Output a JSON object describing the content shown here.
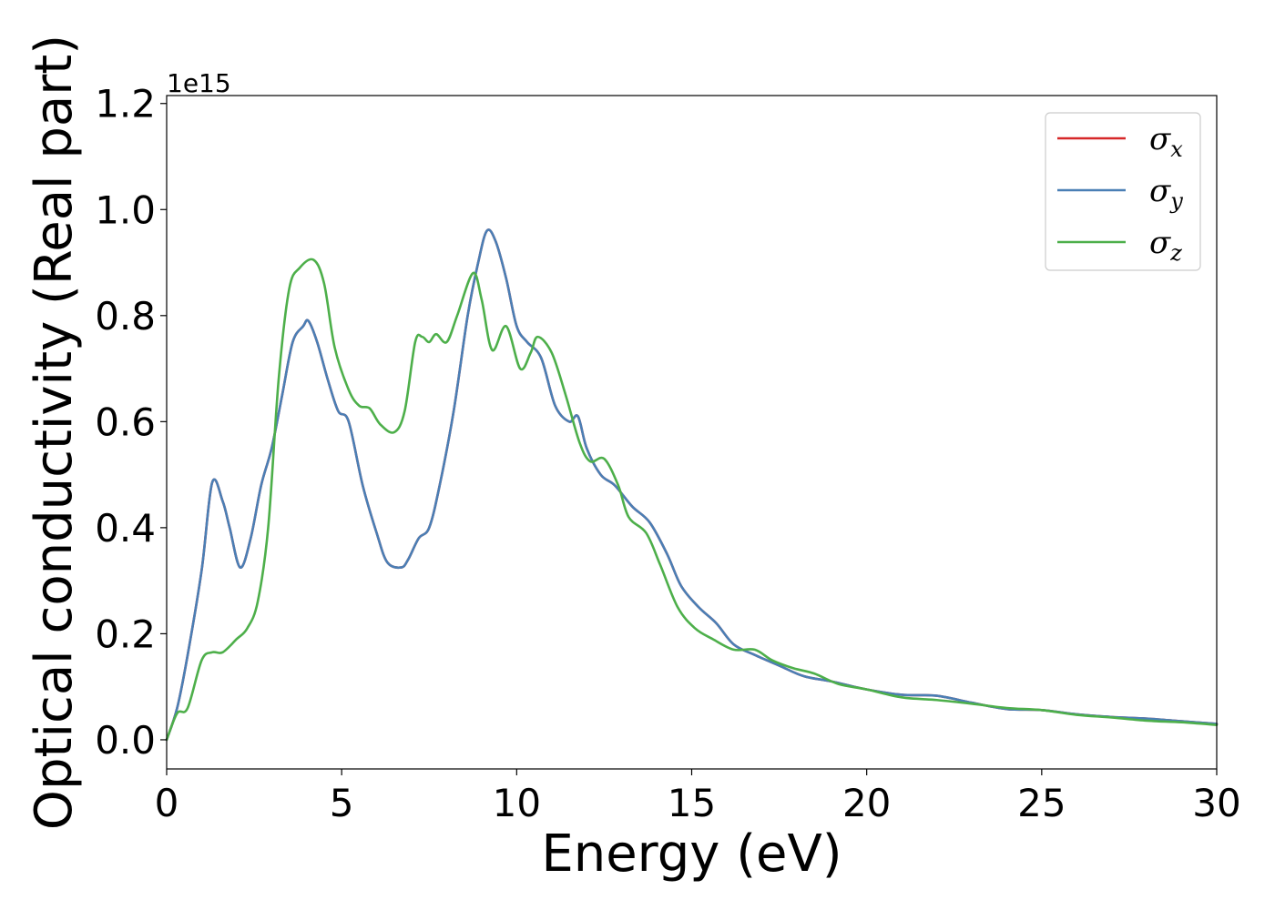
{
  "chart_data": {
    "type": "line",
    "xlabel": "Energy (eV)",
    "ylabel": "Optical conductivity (Real part)",
    "y_offset_label": "1e15",
    "y_scale": 1000000000000000.0,
    "xlim": [
      0,
      30
    ],
    "ylim": [
      -0.055,
      1.215
    ],
    "xticks": [
      0,
      5,
      10,
      15,
      20,
      25,
      30
    ],
    "xtick_labels": [
      "0",
      "5",
      "10",
      "15",
      "20",
      "25",
      "30"
    ],
    "yticks": [
      0.0,
      0.2,
      0.4,
      0.6,
      0.8,
      1.0,
      1.2
    ],
    "ytick_labels": [
      "0.0",
      "0.2",
      "0.4",
      "0.6",
      "0.8",
      "1.0",
      "1.2"
    ],
    "grid": false,
    "legend_position": "top-right",
    "series": [
      {
        "name": "σx",
        "symbol": "σ",
        "subscript": "x",
        "color": "#d62728",
        "points": [
          [
            0,
            0
          ],
          [
            0.3,
            0.06
          ],
          [
            0.6,
            0.16
          ],
          [
            1.0,
            0.32
          ],
          [
            1.3,
            0.485
          ],
          [
            1.6,
            0.45
          ],
          [
            1.8,
            0.4
          ],
          [
            2.1,
            0.325
          ],
          [
            2.4,
            0.38
          ],
          [
            2.7,
            0.48
          ],
          [
            3.0,
            0.55
          ],
          [
            3.3,
            0.65
          ],
          [
            3.6,
            0.75
          ],
          [
            3.9,
            0.78
          ],
          [
            4.05,
            0.79
          ],
          [
            4.3,
            0.75
          ],
          [
            4.6,
            0.68
          ],
          [
            4.9,
            0.62
          ],
          [
            5.2,
            0.6
          ],
          [
            5.6,
            0.48
          ],
          [
            6.0,
            0.39
          ],
          [
            6.3,
            0.335
          ],
          [
            6.7,
            0.325
          ],
          [
            6.9,
            0.34
          ],
          [
            7.2,
            0.38
          ],
          [
            7.5,
            0.4
          ],
          [
            7.8,
            0.48
          ],
          [
            8.2,
            0.62
          ],
          [
            8.6,
            0.8
          ],
          [
            8.9,
            0.9
          ],
          [
            9.15,
            0.96
          ],
          [
            9.4,
            0.94
          ],
          [
            9.7,
            0.87
          ],
          [
            10.0,
            0.78
          ],
          [
            10.3,
            0.75
          ],
          [
            10.7,
            0.72
          ],
          [
            11.1,
            0.63
          ],
          [
            11.5,
            0.6
          ],
          [
            11.75,
            0.61
          ],
          [
            12.0,
            0.55
          ],
          [
            12.4,
            0.5
          ],
          [
            12.8,
            0.48
          ],
          [
            13.3,
            0.44
          ],
          [
            13.8,
            0.41
          ],
          [
            14.3,
            0.35
          ],
          [
            14.7,
            0.29
          ],
          [
            15.2,
            0.25
          ],
          [
            15.7,
            0.22
          ],
          [
            16.2,
            0.18
          ],
          [
            16.8,
            0.16
          ],
          [
            17.5,
            0.14
          ],
          [
            18.2,
            0.12
          ],
          [
            19.0,
            0.11
          ],
          [
            20.0,
            0.095
          ],
          [
            21.0,
            0.085
          ],
          [
            22.0,
            0.083
          ],
          [
            23.0,
            0.07
          ],
          [
            24.0,
            0.058
          ],
          [
            25.0,
            0.056
          ],
          [
            26.0,
            0.048
          ],
          [
            27.0,
            0.043
          ],
          [
            28.0,
            0.04
          ],
          [
            29.0,
            0.035
          ],
          [
            30.0,
            0.03
          ]
        ]
      },
      {
        "name": "σy",
        "symbol": "σ",
        "subscript": "y",
        "color": "#4a7fb5",
        "points": [
          [
            0,
            0
          ],
          [
            0.3,
            0.06
          ],
          [
            0.6,
            0.16
          ],
          [
            1.0,
            0.32
          ],
          [
            1.3,
            0.485
          ],
          [
            1.6,
            0.45
          ],
          [
            1.8,
            0.4
          ],
          [
            2.1,
            0.325
          ],
          [
            2.4,
            0.38
          ],
          [
            2.7,
            0.48
          ],
          [
            3.0,
            0.55
          ],
          [
            3.3,
            0.65
          ],
          [
            3.6,
            0.75
          ],
          [
            3.9,
            0.78
          ],
          [
            4.05,
            0.79
          ],
          [
            4.3,
            0.75
          ],
          [
            4.6,
            0.68
          ],
          [
            4.9,
            0.62
          ],
          [
            5.2,
            0.6
          ],
          [
            5.6,
            0.48
          ],
          [
            6.0,
            0.39
          ],
          [
            6.3,
            0.335
          ],
          [
            6.7,
            0.325
          ],
          [
            6.9,
            0.34
          ],
          [
            7.2,
            0.38
          ],
          [
            7.5,
            0.4
          ],
          [
            7.8,
            0.48
          ],
          [
            8.2,
            0.62
          ],
          [
            8.6,
            0.8
          ],
          [
            8.9,
            0.9
          ],
          [
            9.15,
            0.96
          ],
          [
            9.4,
            0.94
          ],
          [
            9.7,
            0.87
          ],
          [
            10.0,
            0.78
          ],
          [
            10.3,
            0.75
          ],
          [
            10.7,
            0.72
          ],
          [
            11.1,
            0.63
          ],
          [
            11.5,
            0.6
          ],
          [
            11.75,
            0.61
          ],
          [
            12.0,
            0.55
          ],
          [
            12.4,
            0.5
          ],
          [
            12.8,
            0.48
          ],
          [
            13.3,
            0.44
          ],
          [
            13.8,
            0.41
          ],
          [
            14.3,
            0.35
          ],
          [
            14.7,
            0.29
          ],
          [
            15.2,
            0.25
          ],
          [
            15.7,
            0.22
          ],
          [
            16.2,
            0.18
          ],
          [
            16.8,
            0.16
          ],
          [
            17.5,
            0.14
          ],
          [
            18.2,
            0.12
          ],
          [
            19.0,
            0.11
          ],
          [
            20.0,
            0.095
          ],
          [
            21.0,
            0.085
          ],
          [
            22.0,
            0.083
          ],
          [
            23.0,
            0.07
          ],
          [
            24.0,
            0.058
          ],
          [
            25.0,
            0.056
          ],
          [
            26.0,
            0.048
          ],
          [
            27.0,
            0.043
          ],
          [
            28.0,
            0.04
          ],
          [
            29.0,
            0.035
          ],
          [
            30.0,
            0.03
          ]
        ]
      },
      {
        "name": "σz",
        "symbol": "σ",
        "subscript": "z",
        "color": "#4daf4a",
        "points": [
          [
            0,
            0
          ],
          [
            0.3,
            0.05
          ],
          [
            0.6,
            0.06
          ],
          [
            1.0,
            0.15
          ],
          [
            1.3,
            0.165
          ],
          [
            1.6,
            0.165
          ],
          [
            2.0,
            0.19
          ],
          [
            2.3,
            0.21
          ],
          [
            2.6,
            0.26
          ],
          [
            2.9,
            0.4
          ],
          [
            3.2,
            0.68
          ],
          [
            3.5,
            0.85
          ],
          [
            3.8,
            0.89
          ],
          [
            4.2,
            0.905
          ],
          [
            4.5,
            0.86
          ],
          [
            4.8,
            0.74
          ],
          [
            5.2,
            0.66
          ],
          [
            5.5,
            0.63
          ],
          [
            5.8,
            0.625
          ],
          [
            6.1,
            0.595
          ],
          [
            6.5,
            0.58
          ],
          [
            6.8,
            0.62
          ],
          [
            7.1,
            0.75
          ],
          [
            7.3,
            0.76
          ],
          [
            7.5,
            0.75
          ],
          [
            7.7,
            0.765
          ],
          [
            8.0,
            0.75
          ],
          [
            8.3,
            0.8
          ],
          [
            8.75,
            0.88
          ],
          [
            9.0,
            0.83
          ],
          [
            9.3,
            0.735
          ],
          [
            9.7,
            0.78
          ],
          [
            10.1,
            0.7
          ],
          [
            10.4,
            0.73
          ],
          [
            10.6,
            0.76
          ],
          [
            11.0,
            0.73
          ],
          [
            11.4,
            0.65
          ],
          [
            11.8,
            0.56
          ],
          [
            12.1,
            0.525
          ],
          [
            12.5,
            0.53
          ],
          [
            12.9,
            0.48
          ],
          [
            13.2,
            0.42
          ],
          [
            13.7,
            0.39
          ],
          [
            14.1,
            0.33
          ],
          [
            14.6,
            0.25
          ],
          [
            15.1,
            0.21
          ],
          [
            15.6,
            0.19
          ],
          [
            16.2,
            0.17
          ],
          [
            16.8,
            0.17
          ],
          [
            17.3,
            0.15
          ],
          [
            17.9,
            0.135
          ],
          [
            18.5,
            0.125
          ],
          [
            19.2,
            0.105
          ],
          [
            20.0,
            0.095
          ],
          [
            21.0,
            0.08
          ],
          [
            22.0,
            0.075
          ],
          [
            23.0,
            0.068
          ],
          [
            24.0,
            0.06
          ],
          [
            25.0,
            0.056
          ],
          [
            26.0,
            0.047
          ],
          [
            27.0,
            0.042
          ],
          [
            28.0,
            0.036
          ],
          [
            29.0,
            0.033
          ],
          [
            30.0,
            0.028
          ]
        ]
      }
    ]
  }
}
